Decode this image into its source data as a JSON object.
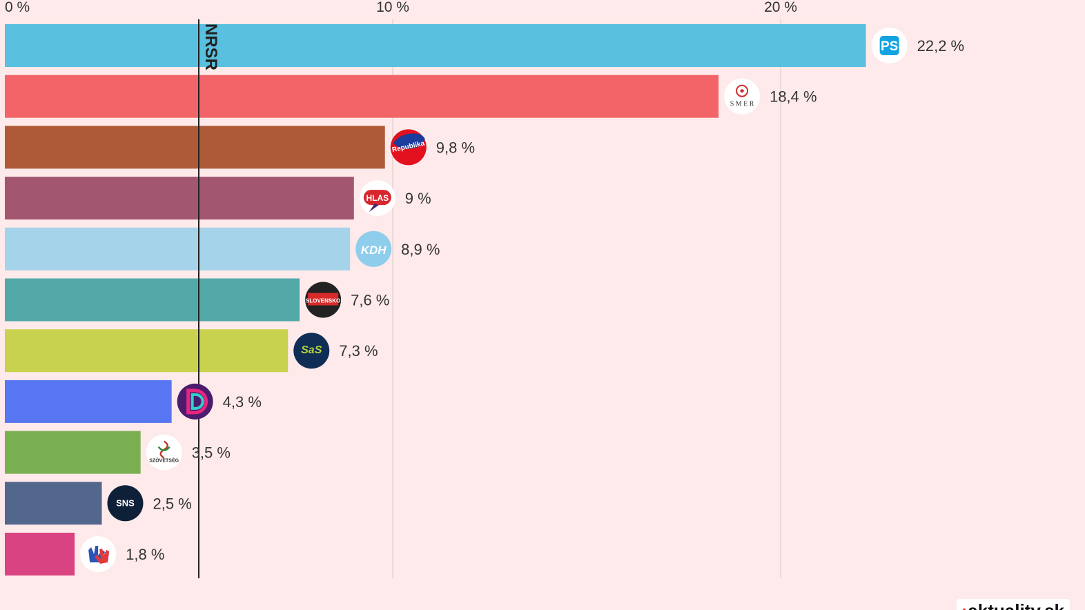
{
  "chart_data": {
    "type": "bar",
    "orientation": "horizontal",
    "categories": [
      "PS",
      "SMER",
      "Republika",
      "HLAS",
      "KDH",
      "Hnutie Slovensko",
      "SaS",
      "Demokrati",
      "Szövetség",
      "SNS",
      "Modrí"
    ],
    "values": [
      22.2,
      18.4,
      9.8,
      9.0,
      8.9,
      7.6,
      7.3,
      4.3,
      3.5,
      2.5,
      1.8
    ],
    "value_labels": [
      "22,2 %",
      "18,4 %",
      "9,8 %",
      "9 %",
      "8,9 %",
      "7,6 %",
      "7,3 %",
      "4,3 %",
      "3,5 %",
      "2,5 %",
      "1,8 %"
    ],
    "colors": [
      "#59C0E0",
      "#F26468",
      "#AE5A38",
      "#A3566F",
      "#A4D3EA",
      "#53A9A8",
      "#C9D24F",
      "#5876F1",
      "#7AAF52",
      "#53668C",
      "#D94382"
    ],
    "logos": [
      "ps-logo",
      "smer-logo",
      "republika-logo",
      "hlas-logo",
      "kdh-logo",
      "hnutie-slovensko-logo",
      "sas-logo",
      "demokrati-logo",
      "szovetseg-logo",
      "sns-logo",
      "hands-logo"
    ],
    "xlim": [
      0,
      25
    ],
    "ticks": [
      0,
      10,
      20
    ],
    "tick_labels": [
      "0 %",
      "10 %",
      "20 %"
    ],
    "threshold": {
      "value": 5,
      "label": "NRSR"
    },
    "grid": true,
    "legend": "none"
  },
  "footer": {
    "note": "",
    "brand": "aktuality.sk"
  }
}
